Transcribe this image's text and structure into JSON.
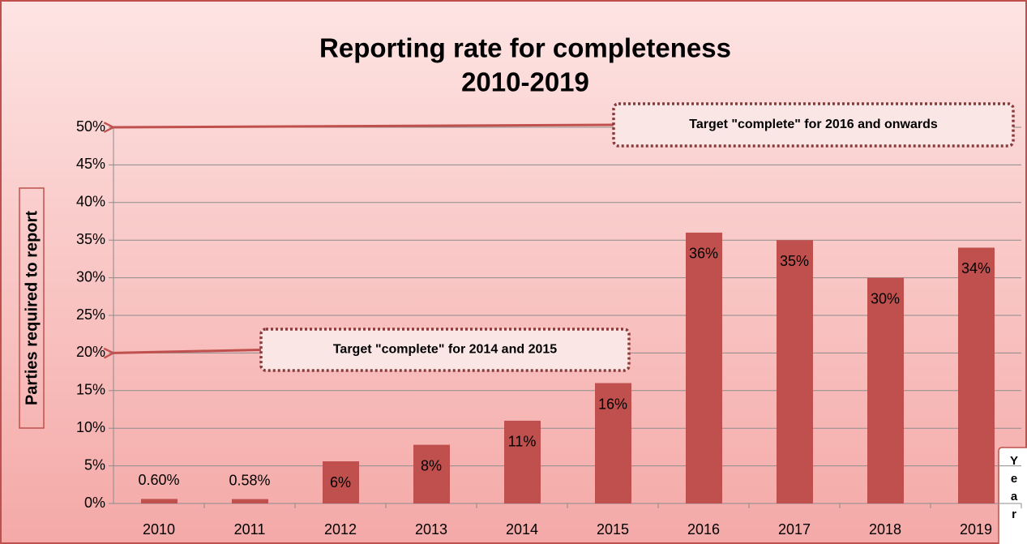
{
  "chart_data": {
    "type": "bar",
    "title": [
      "Reporting rate for completeness",
      "2010-2019"
    ],
    "y_label": "Parties required to report",
    "x_label": "Year",
    "categories": [
      "2010",
      "2011",
      "2012",
      "2013",
      "2014",
      "2015",
      "2016",
      "2017",
      "2018",
      "2019"
    ],
    "values": [
      0.6,
      0.58,
      5.6,
      7.8,
      11,
      16,
      36,
      35,
      30,
      34
    ],
    "value_labels": [
      "0.60%",
      "0.58%",
      "6%",
      "8%",
      "11%",
      "16%",
      "36%",
      "35%",
      "30%",
      "34%"
    ],
    "color": "#c0504d",
    "ylim": [
      0,
      50
    ],
    "yticks": [
      {
        "value": 0,
        "label": "0%"
      },
      {
        "value": 5,
        "label": "5%"
      },
      {
        "value": 10,
        "label": "10%"
      },
      {
        "value": 15,
        "label": "15%"
      },
      {
        "value": 20,
        "label": "20%"
      },
      {
        "value": 25,
        "label": "25%"
      },
      {
        "value": 30,
        "label": "30%"
      },
      {
        "value": 35,
        "label": "35%"
      },
      {
        "value": 40,
        "label": "40%"
      },
      {
        "value": 45,
        "label": "45%"
      },
      {
        "value": 50,
        "label": "50%"
      }
    ],
    "grid": true,
    "annotations": [
      {
        "text": "Target \"complete\" for 2016 and onwards",
        "value": 50
      },
      {
        "text": "Target \"complete\" for 2014 and 2015",
        "value": 20
      }
    ]
  }
}
